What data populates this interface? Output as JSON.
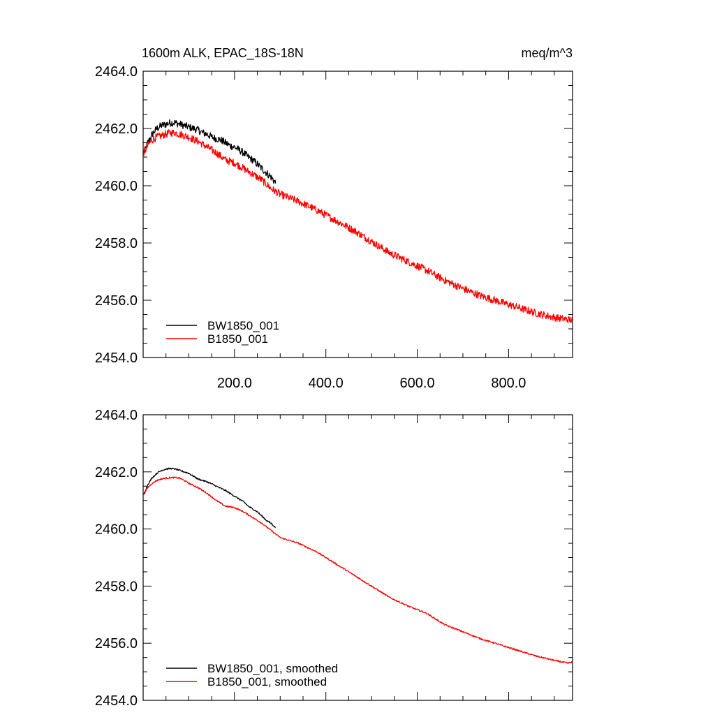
{
  "header": {
    "title_left": "1600m ALK, EPAC_18S-18N",
    "title_right": "meq/m^3"
  },
  "colors": {
    "series_1": "#000000",
    "series_2": "#ff0000",
    "axes": "#000000"
  },
  "chart_data": [
    {
      "type": "line",
      "xlim": [
        0,
        940
      ],
      "ylim": [
        2454,
        2464
      ],
      "x_ticks": [
        200,
        400,
        600,
        800
      ],
      "x_tick_labels": [
        "200.0",
        "400.0",
        "600.0",
        "800.0"
      ],
      "y_ticks": [
        2454,
        2456,
        2458,
        2460,
        2462,
        2464
      ],
      "y_tick_labels": [
        "2454.0",
        "2456.0",
        "2458.0",
        "2460.0",
        "2462.0",
        "2464.0"
      ],
      "legend_position": "bottom-left",
      "series": [
        {
          "name": "BW1850_001",
          "color": "#000000",
          "x": [
            1,
            10,
            20,
            30,
            40,
            50,
            60,
            70,
            80,
            90,
            100,
            110,
            120,
            130,
            140,
            150,
            160,
            170,
            180,
            190,
            200,
            210,
            220,
            230,
            240,
            250,
            260,
            270,
            280,
            290
          ],
          "y": [
            2461.1,
            2461.5,
            2461.8,
            2462.0,
            2462.1,
            2462.15,
            2462.2,
            2462.2,
            2462.15,
            2462.1,
            2462.05,
            2462.0,
            2461.95,
            2461.85,
            2461.8,
            2461.7,
            2461.65,
            2461.6,
            2461.5,
            2461.4,
            2461.35,
            2461.25,
            2461.15,
            2461.0,
            2460.9,
            2460.75,
            2460.6,
            2460.45,
            2460.3,
            2460.1
          ]
        },
        {
          "name": "B1850_001",
          "color": "#ff0000",
          "x": [
            1,
            10,
            20,
            30,
            40,
            50,
            60,
            70,
            80,
            90,
            100,
            120,
            140,
            160,
            180,
            200,
            220,
            240,
            260,
            280,
            300,
            340,
            380,
            420,
            460,
            500,
            540,
            580,
            620,
            660,
            700,
            740,
            780,
            820,
            860,
            900,
            940
          ],
          "y": [
            2461.1,
            2461.4,
            2461.6,
            2461.7,
            2461.75,
            2461.8,
            2461.85,
            2461.85,
            2461.8,
            2461.75,
            2461.7,
            2461.55,
            2461.35,
            2461.15,
            2460.9,
            2460.8,
            2460.6,
            2460.4,
            2460.2,
            2459.9,
            2459.7,
            2459.45,
            2459.15,
            2458.8,
            2458.45,
            2458.05,
            2457.65,
            2457.35,
            2457.05,
            2456.7,
            2456.4,
            2456.15,
            2455.95,
            2455.75,
            2455.55,
            2455.4,
            2455.3
          ]
        }
      ]
    },
    {
      "type": "line",
      "xlim": [
        0,
        940
      ],
      "ylim": [
        2454,
        2464
      ],
      "y_ticks": [
        2454,
        2456,
        2458,
        2460,
        2462,
        2464
      ],
      "y_tick_labels": [
        "2454.0",
        "2456.0",
        "2458.0",
        "2460.0",
        "2462.0",
        "2464.0"
      ],
      "legend_position": "bottom-left",
      "series": [
        {
          "name": "BW1850_001, smoothed",
          "color": "#000000",
          "x": [
            1,
            10,
            20,
            30,
            40,
            50,
            60,
            70,
            80,
            90,
            100,
            110,
            120,
            130,
            140,
            150,
            160,
            170,
            180,
            190,
            200,
            210,
            220,
            230,
            240,
            250,
            260,
            270,
            280,
            290
          ],
          "y": [
            2461.2,
            2461.55,
            2461.8,
            2461.95,
            2462.05,
            2462.1,
            2462.12,
            2462.1,
            2462.05,
            2462.0,
            2461.95,
            2461.85,
            2461.75,
            2461.7,
            2461.65,
            2461.58,
            2461.5,
            2461.42,
            2461.35,
            2461.25,
            2461.15,
            2461.05,
            2460.95,
            2460.8,
            2460.7,
            2460.6,
            2460.45,
            2460.3,
            2460.2,
            2460.05
          ]
        },
        {
          "name": "B1850_001, smoothed",
          "color": "#ff0000",
          "x": [
            1,
            10,
            20,
            30,
            40,
            50,
            60,
            70,
            80,
            90,
            100,
            120,
            140,
            160,
            180,
            200,
            220,
            240,
            260,
            280,
            300,
            340,
            380,
            420,
            460,
            500,
            540,
            580,
            620,
            660,
            700,
            740,
            780,
            820,
            860,
            900,
            930,
            940
          ],
          "y": [
            2461.2,
            2461.45,
            2461.6,
            2461.7,
            2461.75,
            2461.78,
            2461.8,
            2461.8,
            2461.78,
            2461.7,
            2461.6,
            2461.45,
            2461.25,
            2461.0,
            2460.8,
            2460.75,
            2460.6,
            2460.4,
            2460.2,
            2459.95,
            2459.7,
            2459.5,
            2459.2,
            2458.8,
            2458.4,
            2458.0,
            2457.6,
            2457.3,
            2457.05,
            2456.65,
            2456.4,
            2456.15,
            2455.95,
            2455.75,
            2455.55,
            2455.4,
            2455.3,
            2455.35
          ]
        }
      ]
    }
  ]
}
